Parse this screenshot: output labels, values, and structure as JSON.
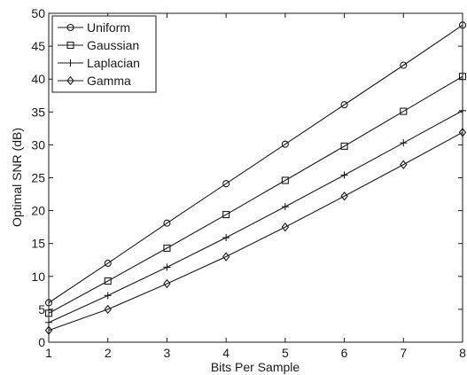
{
  "chart_data": {
    "type": "line",
    "title": "",
    "xlabel": "Bits Per Sample",
    "ylabel": "Optimal SNR (dB)",
    "x": [
      1,
      2,
      3,
      4,
      5,
      6,
      7,
      8
    ],
    "xlim": [
      1,
      8
    ],
    "ylim": [
      0,
      50
    ],
    "xticks": [
      1,
      2,
      3,
      4,
      5,
      6,
      7,
      8
    ],
    "yticks": [
      0,
      5,
      10,
      15,
      20,
      25,
      30,
      35,
      40,
      45,
      50
    ],
    "grid": false,
    "legend_position": "top-left",
    "series": [
      {
        "name": "Uniform",
        "marker": "circle",
        "values": [
          6.0,
          12.0,
          18.1,
          24.1,
          30.1,
          36.1,
          42.1,
          48.2
        ]
      },
      {
        "name": "Gaussian",
        "marker": "square",
        "values": [
          4.4,
          9.3,
          14.3,
          19.4,
          24.6,
          29.8,
          35.1,
          40.4
        ]
      },
      {
        "name": "Laplacian",
        "marker": "plus",
        "values": [
          3.0,
          7.1,
          11.4,
          15.9,
          20.6,
          25.4,
          30.3,
          35.2
        ]
      },
      {
        "name": "Gamma",
        "marker": "diamond",
        "values": [
          1.8,
          5.0,
          8.9,
          13.0,
          17.5,
          22.2,
          27.0,
          31.9
        ]
      }
    ]
  }
}
